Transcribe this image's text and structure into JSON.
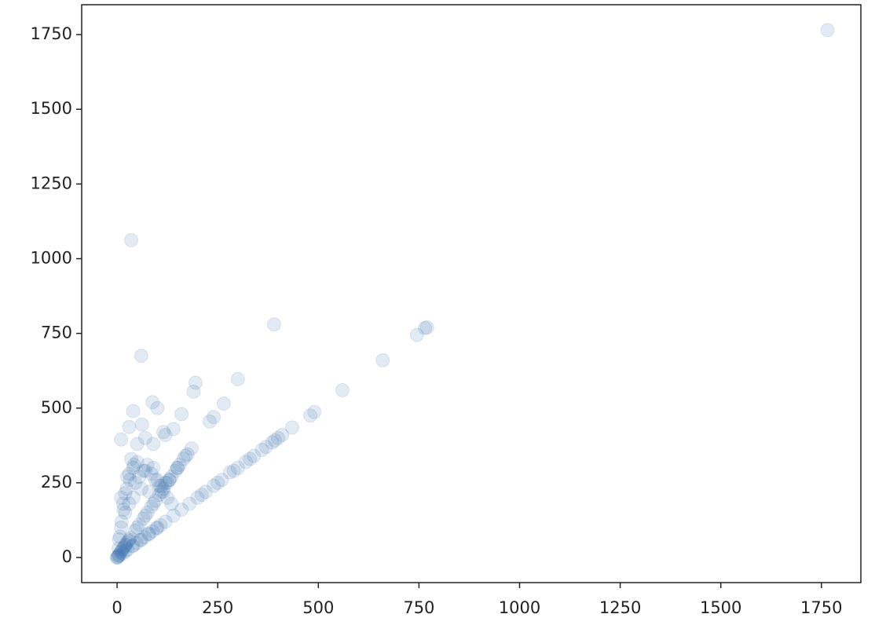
{
  "chart_data": {
    "type": "scatter",
    "color": "#3b75af",
    "alpha": 0.15,
    "x": [
      1765,
      35,
      390,
      765,
      770,
      745,
      60,
      660,
      560,
      300,
      195,
      190,
      88,
      265,
      40,
      490,
      480,
      100,
      160,
      230,
      240,
      435,
      410,
      400,
      392,
      385,
      10,
      30,
      62,
      115,
      120,
      140,
      185,
      175,
      340,
      320,
      300,
      280,
      260,
      240,
      220,
      200,
      180,
      160,
      140,
      120,
      100,
      80,
      60,
      40,
      20,
      0,
      10,
      20,
      30,
      40,
      50,
      70,
      90,
      100,
      120,
      60,
      30,
      20,
      10,
      5,
      40,
      80,
      110,
      130,
      150,
      90,
      70,
      50,
      35,
      25,
      15,
      5,
      10,
      15,
      20,
      25,
      30,
      50,
      70,
      90,
      110,
      130,
      150,
      170,
      3,
      8,
      12,
      18,
      22,
      28,
      33,
      45,
      55,
      65,
      75,
      85,
      95,
      105,
      115,
      125,
      135,
      145,
      155,
      165,
      210,
      250,
      290,
      330,
      360,
      370,
      2,
      6,
      14,
      26,
      38,
      48,
      58,
      68,
      78,
      88,
      98,
      108,
      45,
      55,
      65,
      75,
      85,
      95,
      105,
      115,
      125,
      135,
      0,
      4,
      7,
      11,
      16,
      24,
      32,
      42
    ],
    "y": [
      1765,
      1062,
      780,
      768,
      770,
      745,
      675,
      660,
      560,
      597,
      585,
      555,
      520,
      515,
      490,
      487,
      475,
      500,
      480,
      455,
      470,
      435,
      410,
      400,
      392,
      385,
      395,
      437,
      445,
      420,
      410,
      430,
      365,
      345,
      340,
      320,
      300,
      285,
      260,
      240,
      220,
      200,
      180,
      160,
      140,
      120,
      100,
      80,
      60,
      40,
      20,
      0,
      200,
      215,
      280,
      300,
      320,
      290,
      300,
      260,
      250,
      230,
      180,
      150,
      100,
      60,
      200,
      220,
      240,
      260,
      300,
      380,
      400,
      380,
      330,
      270,
      180,
      10,
      20,
      30,
      40,
      50,
      60,
      100,
      140,
      180,
      220,
      260,
      300,
      340,
      6,
      16,
      24,
      36,
      44,
      56,
      66,
      90,
      110,
      130,
      150,
      170,
      190,
      210,
      230,
      250,
      270,
      290,
      310,
      330,
      210,
      250,
      290,
      330,
      360,
      370,
      2,
      6,
      14,
      26,
      38,
      48,
      58,
      68,
      78,
      88,
      98,
      108,
      250,
      270,
      290,
      310,
      280,
      260,
      240,
      220,
      200,
      180,
      0,
      30,
      70,
      120,
      160,
      230,
      260,
      310
    ],
    "xlim": [
      -88,
      1848
    ],
    "ylim": [
      -84,
      1850
    ],
    "xticks": [
      0,
      250,
      500,
      750,
      1000,
      1250,
      1500,
      1750
    ],
    "yticks": [
      0,
      250,
      500,
      750,
      1000,
      1250,
      1500,
      1750
    ]
  }
}
